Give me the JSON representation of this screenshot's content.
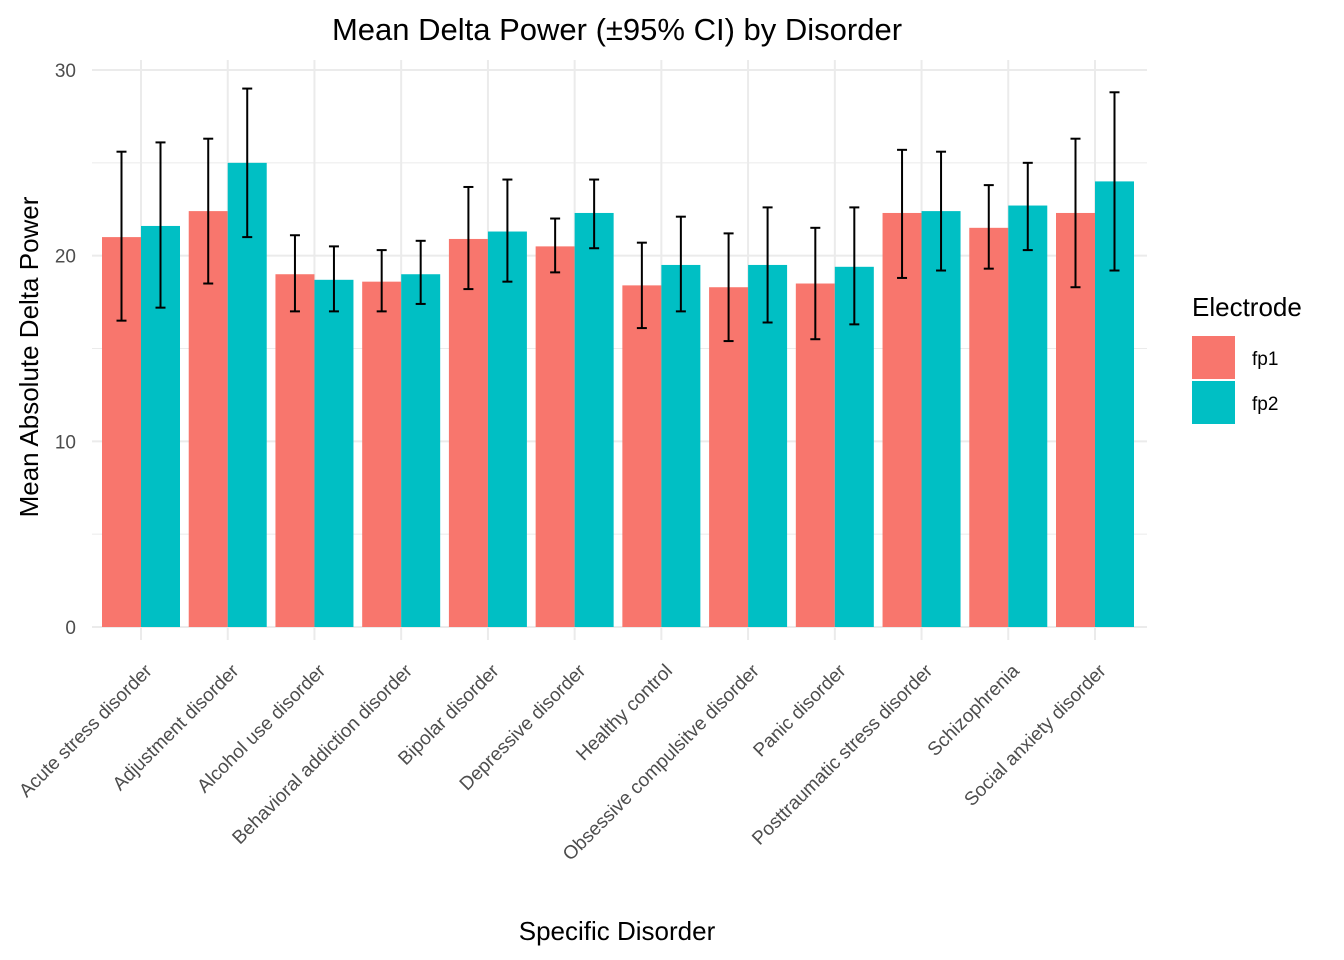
{
  "chart_data": {
    "type": "bar",
    "title": "Mean Delta Power (±95% CI) by Disorder",
    "xlabel": "Specific Disorder",
    "ylabel": "Mean Absolute Delta Power",
    "ylim": [
      0,
      30
    ],
    "yticks": [
      0,
      10,
      20,
      30
    ],
    "grid": true,
    "legend": {
      "title": "Electrode",
      "placement": "right"
    },
    "categories": [
      "Acute stress disorder",
      "Adjustment disorder",
      "Alcohol use disorder",
      "Behavioral addiction disorder",
      "Bipolar disorder",
      "Depressive disorder",
      "Healthy control",
      "Obsessive compulsitve disorder",
      "Panic disorder",
      "Posttraumatic stress disorder",
      "Schizophrenia",
      "Social anxiety disorder"
    ],
    "series": [
      {
        "name": "fp1",
        "color": "#F8766D",
        "values": [
          21.0,
          22.4,
          19.0,
          18.6,
          20.9,
          20.5,
          18.4,
          18.3,
          18.5,
          22.3,
          21.5,
          22.3
        ],
        "error_lower": [
          16.5,
          18.5,
          17.0,
          17.0,
          18.2,
          19.1,
          16.1,
          15.4,
          15.5,
          18.8,
          19.3,
          18.3
        ],
        "error_upper": [
          25.6,
          26.3,
          21.1,
          20.3,
          23.7,
          22.0,
          20.7,
          21.2,
          21.5,
          25.7,
          23.8,
          26.3
        ]
      },
      {
        "name": "fp2",
        "color": "#00BFC4",
        "values": [
          21.6,
          25.0,
          18.7,
          19.0,
          21.3,
          22.3,
          19.5,
          19.5,
          19.4,
          22.4,
          22.7,
          24.0
        ],
        "error_lower": [
          17.2,
          21.0,
          17.0,
          17.4,
          18.6,
          20.4,
          17.0,
          16.4,
          16.3,
          19.2,
          20.3,
          19.2
        ],
        "error_upper": [
          26.1,
          29.0,
          20.5,
          20.8,
          24.1,
          24.1,
          22.1,
          22.6,
          22.6,
          25.6,
          25.0,
          28.8
        ]
      }
    ]
  }
}
